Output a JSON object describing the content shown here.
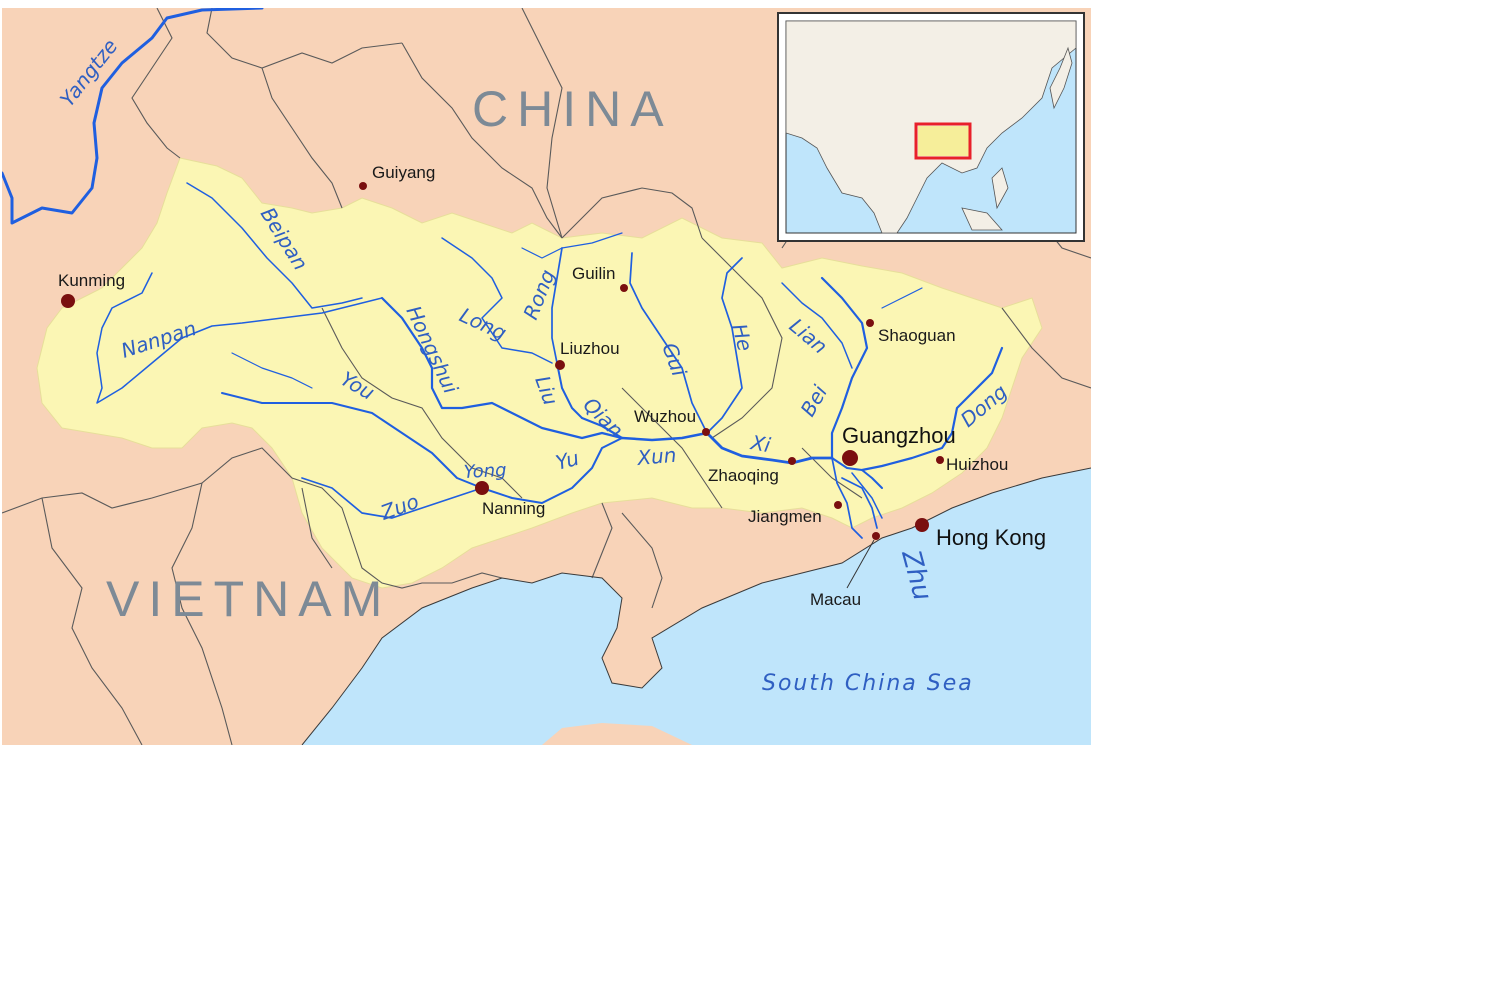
{
  "countries": {
    "china": "CHINA",
    "vietnam": "VIETNAM"
  },
  "sea": "South China Sea",
  "cities": {
    "guiyang": "Guiyang",
    "kunming": "Kunming",
    "guilin": "Guilin",
    "liuzhou": "Liuzhou",
    "shaoguan": "Shaoguan",
    "wuzhou": "Wuzhou",
    "guangzhou": "Guangzhou",
    "huizhou": "Huizhou",
    "zhaoqing": "Zhaoqing",
    "jiangmen": "Jiangmen",
    "nanning": "Nanning",
    "hong_kong": "Hong Kong",
    "macau": "Macau"
  },
  "rivers": {
    "yangtze": "Yangtze",
    "beipan": "Beipan",
    "nanpan": "Nanpan",
    "hongshui": "Hongshui",
    "long": "Long",
    "rong": "Rong",
    "liu": "Liu",
    "you": "You",
    "qian": "Qian",
    "gui": "Gui",
    "he": "He",
    "lian": "Lian",
    "bei": "Bei",
    "xi": "Xi",
    "xun": "Xun",
    "yu": "Yu",
    "yong": "Yong",
    "zuo": "Zuo",
    "dong": "Dong",
    "zhu": "Zhu"
  },
  "colors": {
    "land": "#f8d3b8",
    "basin": "#fbf6b4",
    "water": "#bfe5fb",
    "river": "#1f5fe0",
    "city_dot": "#7a0f0f",
    "inset_highlight": "#e8202a"
  }
}
